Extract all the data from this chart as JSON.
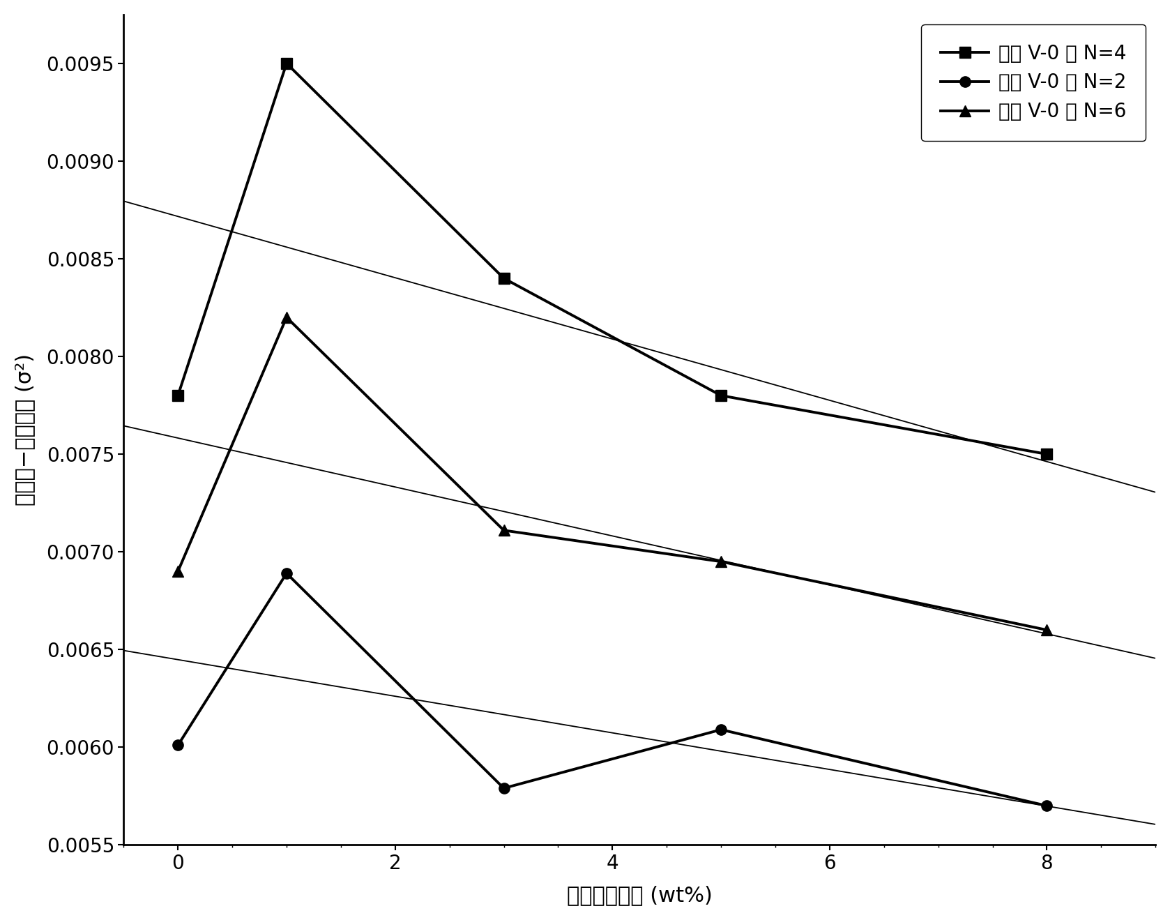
{
  "title": "",
  "xlabel": "替代元素的量 (wt%)",
  "ylabel": "德拜尔−沃勒因子 (σ²)",
  "xlim": [
    -0.5,
    9.0
  ],
  "ylim": [
    0.0055,
    0.00975
  ],
  "xticks": [
    0,
    2,
    4,
    6,
    8
  ],
  "yticks": [
    0.0055,
    0.006,
    0.0065,
    0.007,
    0.0075,
    0.008,
    0.0085,
    0.009,
    0.0095
  ],
  "series": [
    {
      "label": "对于 V-0 及 N=4",
      "x_data": [
        0,
        1,
        3,
        5,
        8
      ],
      "y_data": [
        0.0078,
        0.0095,
        0.0084,
        0.0078,
        0.0075
      ],
      "marker": "s",
      "color": "#000000",
      "linewidth": 2.8,
      "markersize": 11,
      "trend_x": [
        -0.5,
        9.0
      ],
      "trend_y": [
        0.008795,
        0.007305
      ]
    },
    {
      "label": "对于 V-0 及 N=2",
      "x_data": [
        0,
        1,
        3,
        5,
        8
      ],
      "y_data": [
        0.00601,
        0.00689,
        0.00579,
        0.00609,
        0.0057
      ],
      "marker": "o",
      "color": "#000000",
      "linewidth": 2.8,
      "markersize": 11,
      "trend_x": [
        -0.5,
        9.0
      ],
      "trend_y": [
        0.006495,
        0.005605
      ]
    },
    {
      "label": "对于 V-0 及 N=6",
      "x_data": [
        0,
        1,
        3,
        5,
        8
      ],
      "y_data": [
        0.0069,
        0.0082,
        0.00711,
        0.00695,
        0.0066
      ],
      "marker": "^",
      "color": "#000000",
      "linewidth": 2.8,
      "markersize": 11,
      "trend_x": [
        -0.5,
        9.0
      ],
      "trend_y": [
        0.007645,
        0.006455
      ]
    }
  ],
  "background_color": "#ffffff",
  "fontsize_labels": 22,
  "fontsize_ticks": 20,
  "fontsize_legend": 20
}
